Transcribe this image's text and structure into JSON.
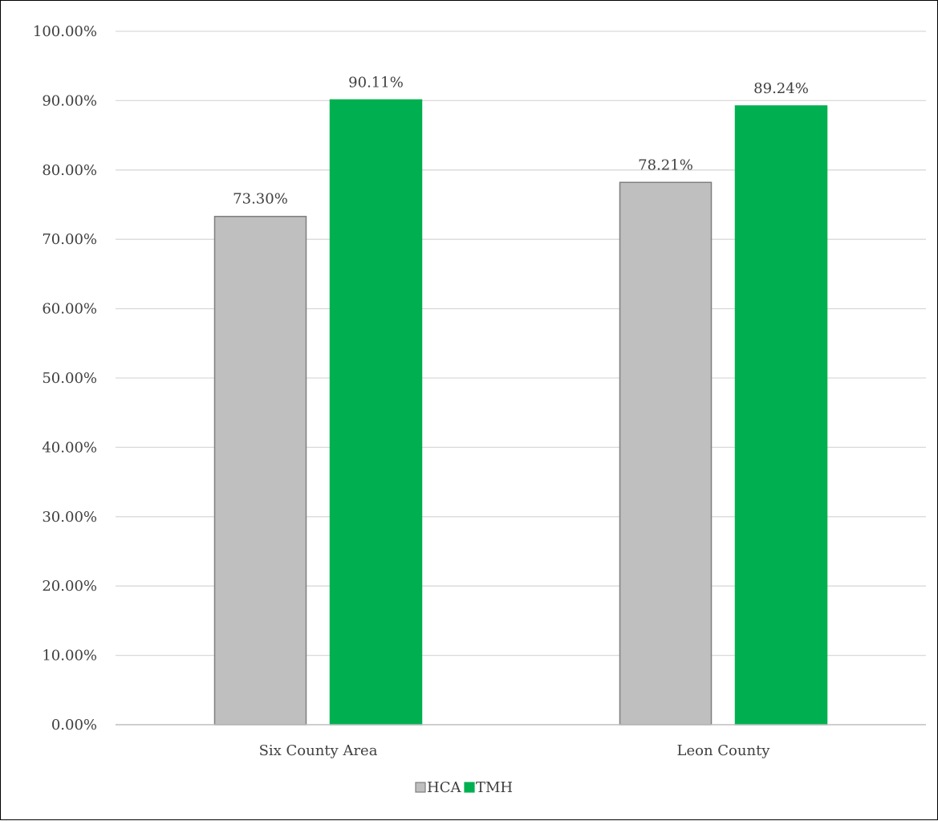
{
  "chart_data": {
    "type": "bar",
    "categories": [
      "Six County Area",
      "Leon County"
    ],
    "series": [
      {
        "name": "HCA",
        "values": [
          73.3,
          78.21
        ],
        "labels": [
          "73.30%",
          "78.21%"
        ],
        "color": "#bfbfbf",
        "stroke": "#7f7f7f"
      },
      {
        "name": "TMH",
        "values": [
          90.11,
          89.24
        ],
        "labels": [
          "90.11%",
          "89.24%"
        ],
        "color": "#00b050",
        "stroke": "#00b050"
      }
    ],
    "ylim": [
      0,
      100
    ],
    "y_ticks": [
      0,
      10,
      20,
      30,
      40,
      50,
      60,
      70,
      80,
      90,
      100
    ],
    "y_tick_labels": [
      "0.00%",
      "10.00%",
      "20.00%",
      "30.00%",
      "40.00%",
      "50.00%",
      "60.00%",
      "70.00%",
      "80.00%",
      "90.00%",
      "100.00%"
    ],
    "grid": true,
    "legend_position": "bottom",
    "gridline_color": "#d9d9d9",
    "axis_color": "#bfbfbf"
  }
}
